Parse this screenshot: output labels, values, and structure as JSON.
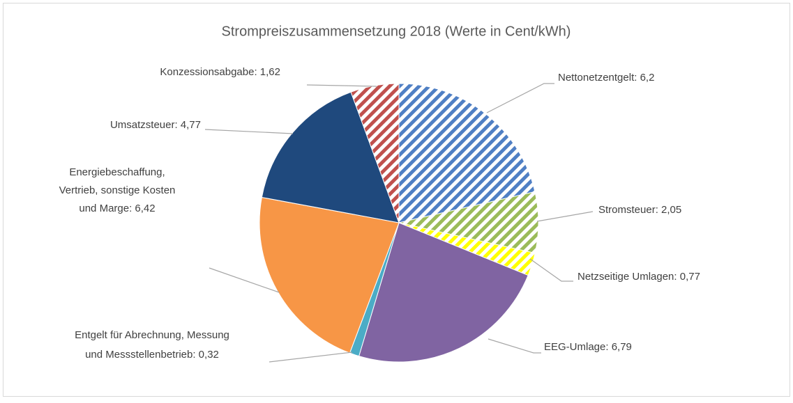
{
  "chart_data": {
    "type": "pie",
    "title": "Strompreiszusammensetzung 2018 (Werte in Cent/kWh)",
    "labels": [
      [
        "Nettonetzentgelt: 6,2"
      ],
      [
        "Stromsteuer: 2,05"
      ],
      [
        "Netzseitige Umlagen: 0,77"
      ],
      [
        "EEG-Umlage: 6,79"
      ],
      [
        "Entgelt für Abrechnung, Messung",
        "und Messstellenbetrieb: 0,32"
      ],
      [
        "Energiebeschaffung,",
        "Vertrieb, sonstige Kosten",
        "und Marge: 6,42"
      ],
      [
        "Umsatzsteuer: 4,77"
      ],
      [
        "Konzessionsabgabe: 1,62"
      ]
    ],
    "values": [
      6.2,
      2.05,
      0.77,
      6.79,
      0.32,
      6.42,
      4.77,
      1.62
    ],
    "colors": [
      "#4f7fc4",
      "#9bbb59",
      "#ffff00",
      "#8064a2",
      "#4bacc6",
      "#f79646",
      "#1f497d",
      "#c0504d"
    ],
    "hatched": [
      true,
      true,
      true,
      false,
      false,
      false,
      false,
      true
    ]
  }
}
